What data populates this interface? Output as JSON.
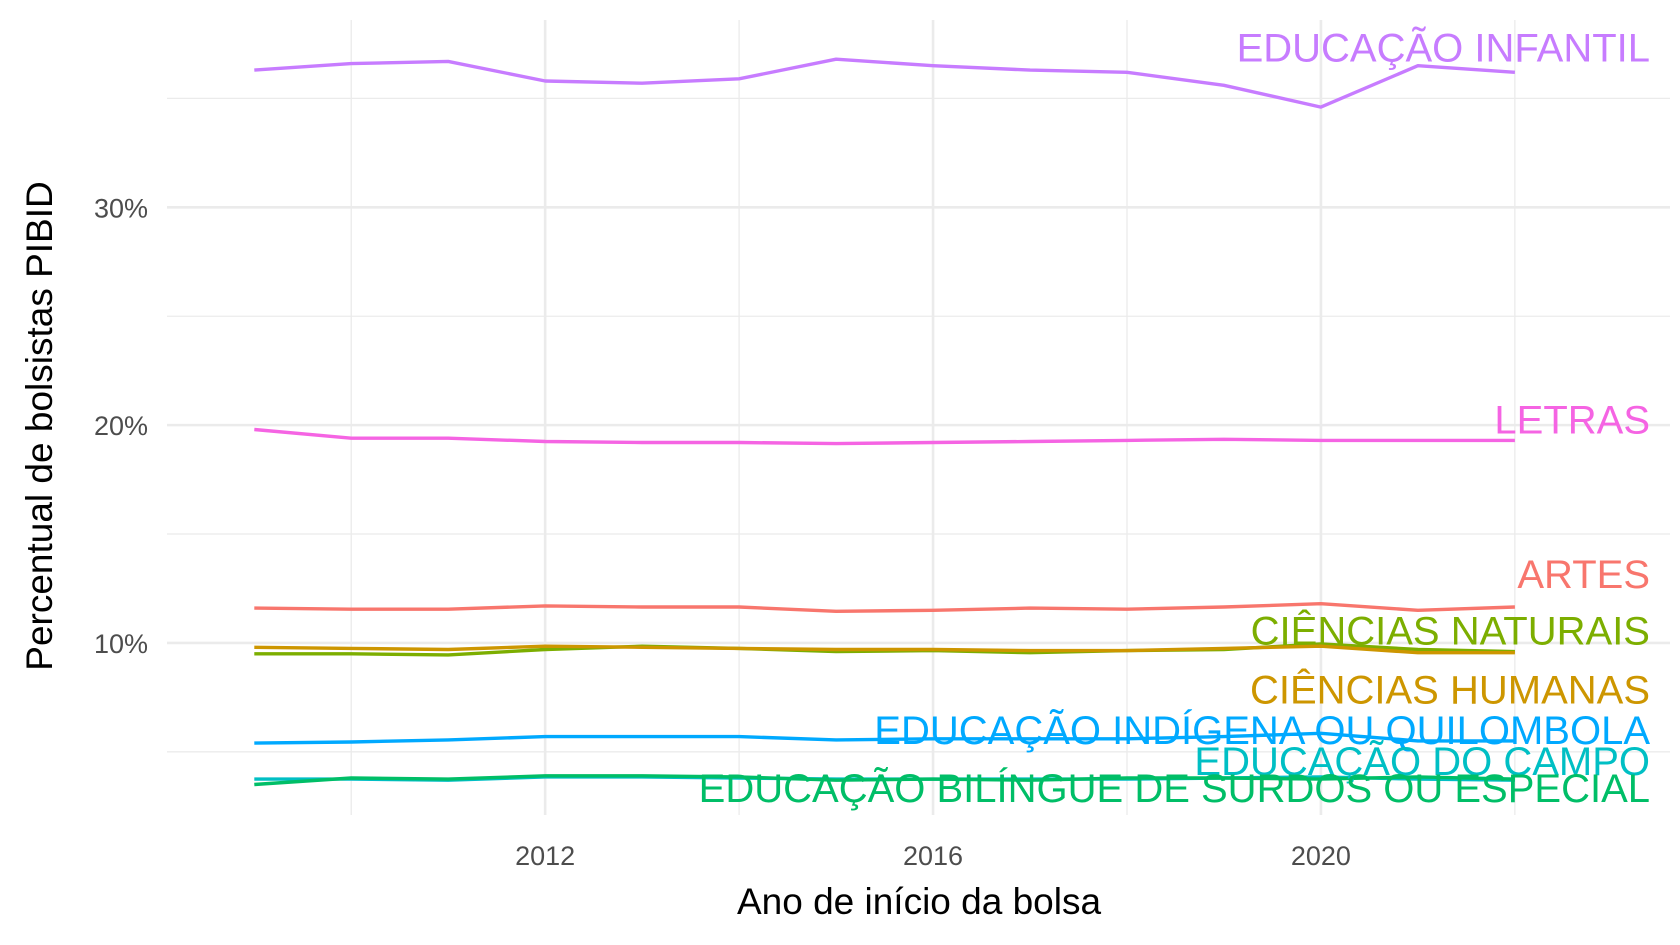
{
  "chart_data": {
    "type": "line",
    "title": "",
    "xlabel": "Ano de início da bolsa",
    "ylabel": "Percentual de bolsistas PIBID",
    "x": [
      2009,
      2010,
      2011,
      2012,
      2013,
      2014,
      2015,
      2016,
      2017,
      2018,
      2019,
      2020,
      2021,
      2022
    ],
    "x_ticks": [
      {
        "value": 2012,
        "label": "2012"
      },
      {
        "value": 2016,
        "label": "2016"
      },
      {
        "value": 2020,
        "label": "2020"
      }
    ],
    "y_ticks": [
      {
        "value": 10,
        "label": "10%"
      },
      {
        "value": 20,
        "label": "20%"
      },
      {
        "value": 30,
        "label": "30%"
      }
    ],
    "y_unit": "%",
    "xlim": [
      2008.1,
      2023.6
    ],
    "ylim": [
      2.1,
      38.6
    ],
    "grid": true,
    "legend": "direct labels at line ends",
    "series": [
      {
        "name": "EDUCAÇÃO INFANTIL",
        "color": "#C77CFF",
        "values": [
          36.3,
          36.6,
          36.7,
          35.8,
          35.7,
          35.9,
          36.8,
          36.5,
          36.3,
          36.2,
          35.6,
          34.6,
          36.5,
          36.2
        ]
      },
      {
        "name": "LETRAS",
        "color": "#F564E3",
        "values": [
          19.8,
          19.4,
          19.4,
          19.25,
          19.2,
          19.2,
          19.15,
          19.2,
          19.25,
          19.3,
          19.35,
          19.3,
          19.3,
          19.3
        ]
      },
      {
        "name": "ARTES",
        "color": "#F8766D",
        "values": [
          11.6,
          11.55,
          11.55,
          11.7,
          11.65,
          11.65,
          11.45,
          11.5,
          11.6,
          11.55,
          11.65,
          11.8,
          11.5,
          11.65
        ]
      },
      {
        "name": "CIÊNCIAS NATURAIS",
        "color": "#7CAE00",
        "values": [
          9.5,
          9.5,
          9.45,
          9.7,
          9.85,
          9.75,
          9.6,
          9.65,
          9.55,
          9.65,
          9.7,
          9.95,
          9.7,
          9.6
        ]
      },
      {
        "name": "CIÊNCIAS HUMANAS",
        "color": "#CD9600",
        "values": [
          9.8,
          9.75,
          9.7,
          9.85,
          9.8,
          9.75,
          9.7,
          9.7,
          9.65,
          9.65,
          9.75,
          9.85,
          9.55,
          9.55
        ]
      },
      {
        "name": "EDUCAÇÃO INDÍGENA OU QUILOMBOLA",
        "color": "#00A9FF",
        "values": [
          5.4,
          5.45,
          5.55,
          5.7,
          5.7,
          5.7,
          5.55,
          5.6,
          5.6,
          5.6,
          5.7,
          5.85,
          5.5,
          5.5
        ]
      },
      {
        "name": "EDUCAÇÃO DO CAMPO",
        "color": "#00BFC4",
        "values": [
          3.75,
          3.75,
          3.7,
          3.85,
          3.85,
          3.8,
          3.75,
          3.75,
          3.75,
          3.75,
          3.8,
          3.85,
          3.75,
          3.7
        ]
      },
      {
        "name": "EDUCAÇÃO BILÍNGUE DE SURDOS OU ESPECIAL",
        "color": "#00BE67",
        "values": [
          3.5,
          3.8,
          3.75,
          3.9,
          3.9,
          3.85,
          3.7,
          3.75,
          3.7,
          3.8,
          3.8,
          3.75,
          3.85,
          3.75
        ]
      }
    ]
  }
}
